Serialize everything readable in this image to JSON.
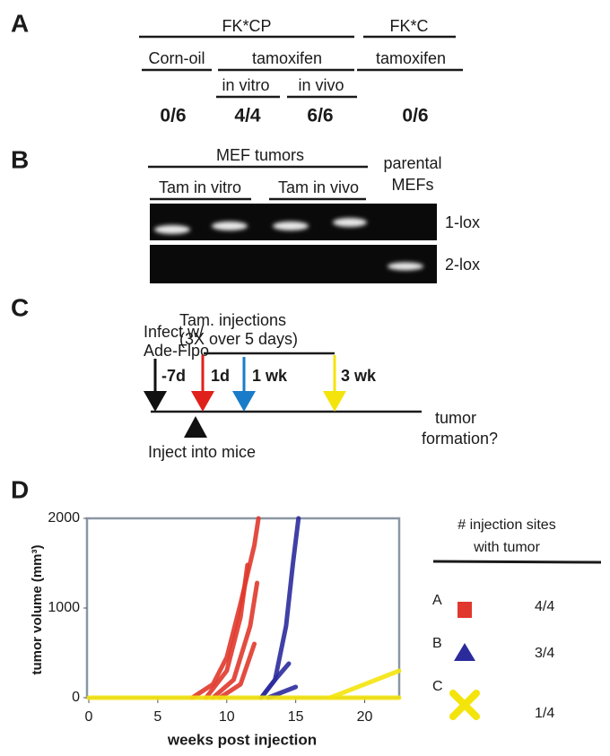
{
  "panel_a": {
    "label": "A",
    "groups": [
      "FK*CP",
      "FK*C"
    ],
    "treatments": [
      "Corn-oil",
      "tamoxifen",
      "tamoxifen"
    ],
    "subtreatments": [
      "in vitro",
      "in vivo"
    ],
    "results": [
      "0/6",
      "4/4",
      "6/6",
      "0/6"
    ]
  },
  "panel_b": {
    "label": "B",
    "group": "MEF tumors",
    "subgroups": [
      "Tam in vitro",
      "Tam in vivo"
    ],
    "control": [
      "parental",
      "MEFs"
    ],
    "bands": [
      "1-lox",
      "2-lox"
    ]
  },
  "panel_c": {
    "label": "C",
    "infect": [
      "Infect w/",
      "Ade-Flpo"
    ],
    "injections": [
      "Tam. injections",
      "(3X over 5 days)"
    ],
    "timepoints": [
      "-7d",
      "1d",
      "1 wk",
      "3 wk"
    ],
    "inject": "Inject into mice",
    "outcome": [
      "tumor",
      "formation?"
    ]
  },
  "chart_data": {
    "type": "line",
    "panel_label": "D",
    "x_label": "weeks post injection",
    "y_label": "tumor volume (mm³)",
    "xlim": [
      0,
      22.5
    ],
    "ylim": [
      0,
      2000
    ],
    "xticks": [
      0,
      5,
      10,
      15,
      20
    ],
    "yticks": [
      0,
      1000,
      2000
    ],
    "legend_title": [
      "# injection sites",
      "with tumor"
    ],
    "series": [
      {
        "name": "A",
        "ratio": "4/4",
        "color": "#e0382c",
        "marker": "square",
        "curves": [
          {
            "x": [
              7.5,
              9,
              10,
              11,
              12,
              12.3
            ],
            "values": [
              0,
              150,
              450,
              1050,
              1700,
              2000
            ]
          },
          {
            "x": [
              8.5,
              10,
              11,
              11.5
            ],
            "values": [
              0,
              300,
              900,
              1480
            ]
          },
          {
            "x": [
              9,
              10.5,
              11.7,
              12.2
            ],
            "values": [
              0,
              200,
              800,
              1280
            ]
          },
          {
            "x": [
              9.5,
              11,
              12
            ],
            "values": [
              0,
              150,
              600
            ]
          }
        ]
      },
      {
        "name": "B",
        "ratio": "3/4",
        "color": "#2b2b9c",
        "marker": "triangle",
        "curves": [
          {
            "x": [
              12.5,
              13.5,
              14.3,
              14.8,
              15.2
            ],
            "values": [
              0,
              200,
              800,
              1500,
              2000
            ]
          },
          {
            "x": [
              12.5,
              13.5,
              14.5
            ],
            "values": [
              0,
              200,
              380
            ]
          },
          {
            "x": [
              13,
              14,
              15
            ],
            "values": [
              0,
              60,
              120
            ]
          }
        ]
      },
      {
        "name": "C",
        "ratio": "1/4",
        "color": "#f4e40c",
        "marker": "x",
        "curves": [
          {
            "x": [
              0,
              22.5
            ],
            "values": [
              0,
              0
            ]
          },
          {
            "x": [
              17.5,
              22.5
            ],
            "values": [
              0,
              300
            ]
          }
        ]
      }
    ]
  }
}
